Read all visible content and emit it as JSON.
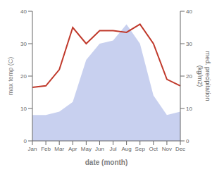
{
  "chart_data": {
    "type": "line",
    "categories": [
      "Jan",
      "Feb",
      "Mar",
      "Apr",
      "May",
      "Jun",
      "Jul",
      "Aug",
      "Sep",
      "Oct",
      "Nov",
      "Dec"
    ],
    "series": [
      {
        "type": "area",
        "color": "#b0bce8",
        "axis": "y2",
        "values": [
          8.0,
          8.0,
          9.0,
          12.0,
          25.0,
          30.0,
          31.0,
          36.0,
          30.0,
          14.0,
          8.0,
          9.0
        ]
      },
      {
        "type": "line",
        "color": "#c0392b",
        "values": [
          16.5,
          17.0,
          22.0,
          35.0,
          30.0,
          34.0,
          34.0,
          33.5,
          36.0,
          30.0,
          19.0,
          17.0
        ]
      }
    ],
    "xlabel": "date (month)",
    "ylabel": "max temp (C)",
    "y2label": "med. precipitation\n(kg/m2)",
    "ylim": [
      0,
      40
    ],
    "yticks": [
      0,
      10,
      20,
      30,
      40
    ],
    "y2lim": [
      0,
      40
    ],
    "y2ticks": [
      0,
      10,
      20,
      30,
      40
    ],
    "grid": false
  }
}
